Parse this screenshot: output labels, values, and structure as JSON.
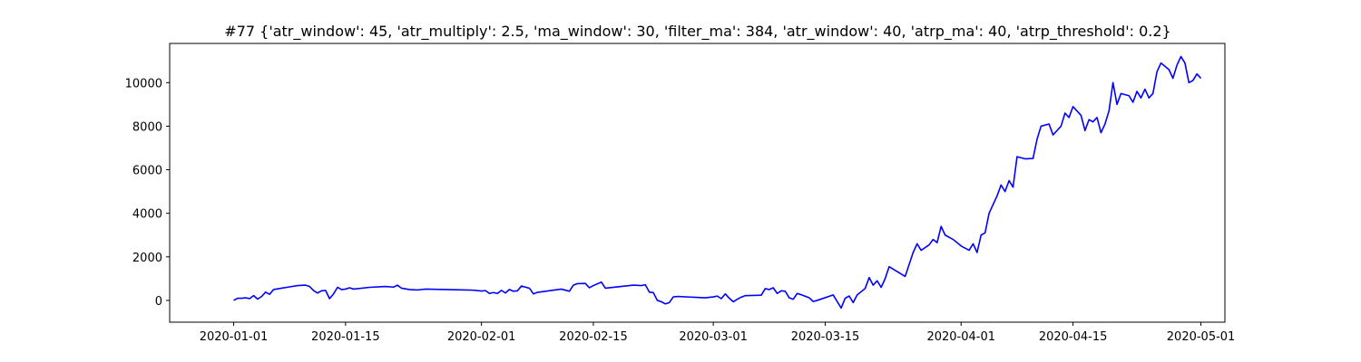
{
  "chart_data": {
    "type": "line",
    "title": "#77 {'atr_window': 45, 'atr_multiply': 2.5, 'ma_window': 30, 'filter_ma': 384, 'atr_window': 40, 'atrp_ma': 40, 'atrp_threshold': 0.2}",
    "xlabel": "",
    "ylabel": "",
    "x_axis_type": "date",
    "xlim": [
      "2019-12-24",
      "2020-05-04"
    ],
    "ylim": [
      -1000,
      11800
    ],
    "grid": false,
    "x_ticks": [
      "2020-01-01",
      "2020-01-15",
      "2020-02-01",
      "2020-02-15",
      "2020-03-01",
      "2020-03-15",
      "2020-04-01",
      "2020-04-15",
      "2020-05-01"
    ],
    "y_ticks": [
      0,
      2000,
      4000,
      6000,
      8000,
      10000
    ],
    "series": [
      {
        "name": "",
        "color": "#0000ff",
        "points": [
          [
            "2020-01-01",
            0
          ],
          [
            "2020-01-01T12",
            100
          ],
          [
            "2020-01-02",
            100
          ],
          [
            "2020-01-02T12",
            120
          ],
          [
            "2020-01-03",
            80
          ],
          [
            "2020-01-03T12",
            220
          ],
          [
            "2020-01-04",
            60
          ],
          [
            "2020-01-04T12",
            180
          ],
          [
            "2020-01-05",
            380
          ],
          [
            "2020-01-05T12",
            280
          ],
          [
            "2020-01-06",
            500
          ],
          [
            "2020-01-07",
            560
          ],
          [
            "2020-01-08",
            620
          ],
          [
            "2020-01-09",
            680
          ],
          [
            "2020-01-10",
            700
          ],
          [
            "2020-01-10T12",
            640
          ],
          [
            "2020-01-11",
            450
          ],
          [
            "2020-01-11T12",
            340
          ],
          [
            "2020-01-12",
            440
          ],
          [
            "2020-01-12T12",
            460
          ],
          [
            "2020-01-13",
            80
          ],
          [
            "2020-01-13T12",
            300
          ],
          [
            "2020-01-14",
            600
          ],
          [
            "2020-01-14T12",
            500
          ],
          [
            "2020-01-15",
            520
          ],
          [
            "2020-01-15T12",
            580
          ],
          [
            "2020-01-16",
            520
          ],
          [
            "2020-01-18",
            600
          ],
          [
            "2020-01-20",
            640
          ],
          [
            "2020-01-21",
            610
          ],
          [
            "2020-01-21T12",
            700
          ],
          [
            "2020-01-22",
            560
          ],
          [
            "2020-01-23",
            500
          ],
          [
            "2020-01-24",
            480
          ],
          [
            "2020-01-25",
            520
          ],
          [
            "2020-01-31",
            470
          ],
          [
            "2020-02-01",
            430
          ],
          [
            "2020-02-01T12",
            450
          ],
          [
            "2020-02-02",
            320
          ],
          [
            "2020-02-02T12",
            360
          ],
          [
            "2020-02-03",
            320
          ],
          [
            "2020-02-03T12",
            460
          ],
          [
            "2020-02-04",
            340
          ],
          [
            "2020-02-04T12",
            500
          ],
          [
            "2020-02-05",
            420
          ],
          [
            "2020-02-05T12",
            440
          ],
          [
            "2020-02-06",
            660
          ],
          [
            "2020-02-07",
            560
          ],
          [
            "2020-02-07T12",
            300
          ],
          [
            "2020-02-08",
            370
          ],
          [
            "2020-02-11",
            520
          ],
          [
            "2020-02-12",
            420
          ],
          [
            "2020-02-12T12",
            700
          ],
          [
            "2020-02-13",
            770
          ],
          [
            "2020-02-14",
            780
          ],
          [
            "2020-02-14T12",
            580
          ],
          [
            "2020-02-15",
            680
          ],
          [
            "2020-02-16",
            840
          ],
          [
            "2020-02-16T12",
            560
          ],
          [
            "2020-02-20",
            700
          ],
          [
            "2020-02-21",
            680
          ],
          [
            "2020-02-21T12",
            720
          ],
          [
            "2020-02-22",
            380
          ],
          [
            "2020-02-22T12",
            360
          ],
          [
            "2020-02-23",
            0
          ],
          [
            "2020-02-23T12",
            -60
          ],
          [
            "2020-02-24",
            -160
          ],
          [
            "2020-02-24T12",
            -100
          ],
          [
            "2020-02-25",
            160
          ],
          [
            "2020-02-25T12",
            180
          ],
          [
            "2020-02-29",
            120
          ],
          [
            "2020-03-01",
            160
          ],
          [
            "2020-03-01T12",
            200
          ],
          [
            "2020-03-02",
            80
          ],
          [
            "2020-03-02T12",
            300
          ],
          [
            "2020-03-03",
            100
          ],
          [
            "2020-03-03T12",
            -60
          ],
          [
            "2020-03-04",
            50
          ],
          [
            "2020-03-04T12",
            150
          ],
          [
            "2020-03-05",
            220
          ],
          [
            "2020-03-07",
            240
          ],
          [
            "2020-03-07T12",
            540
          ],
          [
            "2020-03-08",
            500
          ],
          [
            "2020-03-08T12",
            580
          ],
          [
            "2020-03-09",
            320
          ],
          [
            "2020-03-09T12",
            440
          ],
          [
            "2020-03-10",
            420
          ],
          [
            "2020-03-10T12",
            120
          ],
          [
            "2020-03-11",
            50
          ],
          [
            "2020-03-11T12",
            320
          ],
          [
            "2020-03-12",
            260
          ],
          [
            "2020-03-13",
            120
          ],
          [
            "2020-03-13T12",
            -50
          ],
          [
            "2020-03-14",
            0
          ],
          [
            "2020-03-16",
            250
          ],
          [
            "2020-03-17",
            -350
          ],
          [
            "2020-03-17T12",
            100
          ],
          [
            "2020-03-18",
            200
          ],
          [
            "2020-03-18T12",
            -100
          ],
          [
            "2020-03-19",
            250
          ],
          [
            "2020-03-19T12",
            400
          ],
          [
            "2020-03-20",
            550
          ],
          [
            "2020-03-20T12",
            1050
          ],
          [
            "2020-03-21",
            700
          ],
          [
            "2020-03-21T12",
            900
          ],
          [
            "2020-03-22",
            600
          ],
          [
            "2020-03-22T12",
            1000
          ],
          [
            "2020-03-23",
            1550
          ],
          [
            "2020-03-25",
            1100
          ],
          [
            "2020-03-26",
            2200
          ],
          [
            "2020-03-26T12",
            2600
          ],
          [
            "2020-03-27",
            2300
          ],
          [
            "2020-03-28",
            2550
          ],
          [
            "2020-03-28T12",
            2800
          ],
          [
            "2020-03-29",
            2650
          ],
          [
            "2020-03-29T12",
            3400
          ],
          [
            "2020-03-30",
            3000
          ],
          [
            "2020-03-31",
            2800
          ],
          [
            "2020-04-01",
            2500
          ],
          [
            "2020-04-01T12",
            2400
          ],
          [
            "2020-04-02",
            2300
          ],
          [
            "2020-04-02T12",
            2600
          ],
          [
            "2020-04-03",
            2200
          ],
          [
            "2020-04-03T12",
            3000
          ],
          [
            "2020-04-04",
            3100
          ],
          [
            "2020-04-04T12",
            4000
          ],
          [
            "2020-04-05",
            4400
          ],
          [
            "2020-04-05T12",
            4800
          ],
          [
            "2020-04-06",
            5300
          ],
          [
            "2020-04-06T12",
            5000
          ],
          [
            "2020-04-07",
            5500
          ],
          [
            "2020-04-07T12",
            5200
          ],
          [
            "2020-04-08",
            6600
          ],
          [
            "2020-04-09",
            6500
          ],
          [
            "2020-04-10",
            6520
          ],
          [
            "2020-04-10T12",
            7400
          ],
          [
            "2020-04-11",
            8000
          ],
          [
            "2020-04-12",
            8100
          ],
          [
            "2020-04-12T12",
            7600
          ],
          [
            "2020-04-13",
            7800
          ],
          [
            "2020-04-13T12",
            8000
          ],
          [
            "2020-04-14",
            8600
          ],
          [
            "2020-04-14T12",
            8400
          ],
          [
            "2020-04-15",
            8900
          ],
          [
            "2020-04-16",
            8500
          ],
          [
            "2020-04-16T12",
            7800
          ],
          [
            "2020-04-17",
            8300
          ],
          [
            "2020-04-17T12",
            8200
          ],
          [
            "2020-04-18",
            8400
          ],
          [
            "2020-04-18T12",
            7700
          ],
          [
            "2020-04-19",
            8100
          ],
          [
            "2020-04-19T12",
            8700
          ],
          [
            "2020-04-20",
            10000
          ],
          [
            "2020-04-20T12",
            9000
          ],
          [
            "2020-04-21",
            9500
          ],
          [
            "2020-04-22",
            9400
          ],
          [
            "2020-04-22T12",
            9100
          ],
          [
            "2020-04-23",
            9600
          ],
          [
            "2020-04-23T12",
            9300
          ],
          [
            "2020-04-24",
            9700
          ],
          [
            "2020-04-24T12",
            9300
          ],
          [
            "2020-04-25",
            9500
          ],
          [
            "2020-04-25T12",
            10500
          ],
          [
            "2020-04-26",
            10900
          ],
          [
            "2020-04-27",
            10600
          ],
          [
            "2020-04-27T12",
            10200
          ],
          [
            "2020-04-28",
            10800
          ],
          [
            "2020-04-28T12",
            11200
          ],
          [
            "2020-04-29",
            10900
          ],
          [
            "2020-04-29T12",
            10000
          ],
          [
            "2020-04-30",
            10100
          ],
          [
            "2020-04-30T12",
            10400
          ],
          [
            "2020-05-01",
            10200
          ]
        ]
      }
    ]
  }
}
